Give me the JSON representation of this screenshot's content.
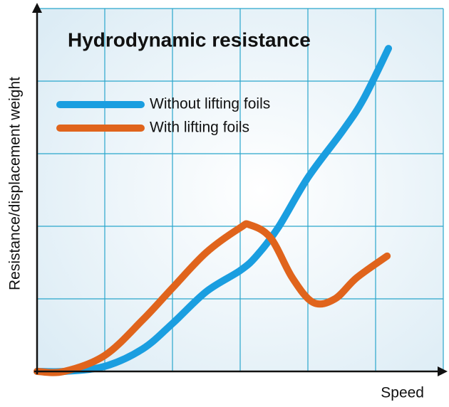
{
  "chart_data": {
    "type": "line",
    "title": "Hydrodynamic resistance",
    "x_label": "Speed",
    "y_label": "Resistance/displacement weight",
    "xlim": [
      0,
      6
    ],
    "ylim": [
      0,
      5
    ],
    "xticks": [
      1,
      2,
      3,
      4,
      5,
      6
    ],
    "yticks": [
      1,
      2,
      3,
      4,
      5
    ],
    "grid": true,
    "series": [
      {
        "name": "Without lifting foils",
        "color": "#1a9ee0",
        "x": [
          0,
          0.4,
          1,
          1.56,
          2,
          2.5,
          3,
          3.24,
          3.56,
          4,
          4.51,
          4.82,
          5.19
        ],
        "values": [
          0,
          0,
          0.07,
          0.31,
          0.66,
          1.1,
          1.39,
          1.59,
          1.98,
          2.67,
          3.31,
          3.75,
          4.45
        ]
      },
      {
        "name": "With lifting foils",
        "color": "#e0641c",
        "x": [
          0,
          0.4,
          1,
          1.56,
          2,
          2.5,
          3,
          3.14,
          3.45,
          3.77,
          4.08,
          4.4,
          4.72,
          5.17
        ],
        "values": [
          0,
          0,
          0.22,
          0.71,
          1.15,
          1.64,
          1.98,
          2.02,
          1.84,
          1.29,
          0.95,
          1.0,
          1.29,
          1.59
        ]
      }
    ]
  }
}
